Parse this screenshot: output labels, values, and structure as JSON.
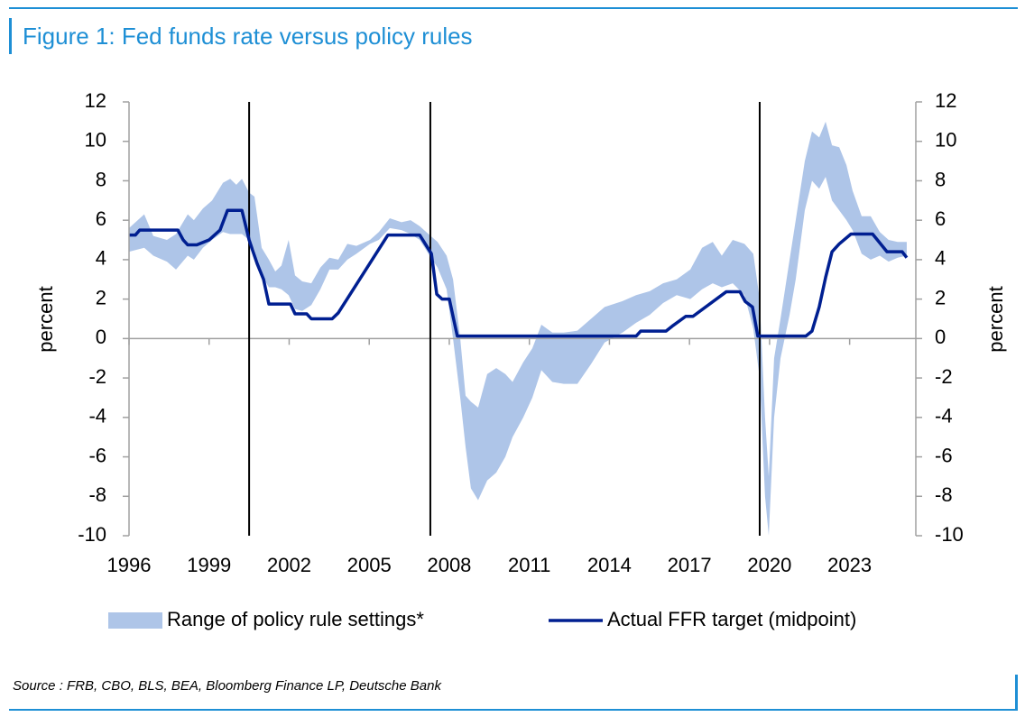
{
  "chart_data": {
    "type": "line",
    "title": "Figure 1: Fed funds rate versus policy rules",
    "source": "Source : FRB, CBO, BLS, BEA, Bloomberg Finance LP, Deutsche Bank",
    "y_label": "percent",
    "y2_label": "percent",
    "xlim": [
      1996,
      2025.48
    ],
    "xticks": [
      1996,
      1999,
      2002,
      2005,
      2008,
      2011,
      2014,
      2017,
      2020,
      2023
    ],
    "ylim": [
      -10,
      12
    ],
    "yticks": [
      -10,
      -8,
      -6,
      -4,
      -2,
      0,
      2,
      4,
      6,
      8,
      10,
      12
    ],
    "y2lim": [
      -10,
      12
    ],
    "y2ticks": [
      -10,
      -8,
      -6,
      -4,
      -2,
      0,
      2,
      4,
      6,
      8,
      10,
      12
    ],
    "grid": false,
    "legend": "bottom",
    "vlines": [
      2000.5,
      2007.29,
      2019.63
    ],
    "vline_color": "#000000",
    "series": [
      {
        "name": "Range of policy rule settings*",
        "type": "range",
        "color": "#aec5e8",
        "x": [
          1996.0,
          1996.57,
          1996.91,
          1997.42,
          1997.76,
          1998.2,
          1998.43,
          1998.77,
          1999.11,
          1999.52,
          1999.79,
          2000.02,
          2000.23,
          2000.5,
          2000.7,
          2000.97,
          2001.24,
          2001.48,
          2001.71,
          2001.98,
          2002.22,
          2002.49,
          2002.83,
          2003.17,
          2003.51,
          2003.84,
          2004.18,
          2004.52,
          2005.03,
          2005.36,
          2005.77,
          2006.21,
          2006.55,
          2006.89,
          2007.22,
          2007.56,
          2007.9,
          2008.14,
          2008.41,
          2008.61,
          2008.81,
          2009.08,
          2009.42,
          2009.76,
          2010.1,
          2010.37,
          2010.77,
          2011.11,
          2011.45,
          2011.86,
          2012.29,
          2012.8,
          2013.31,
          2013.82,
          2014.49,
          2015.0,
          2015.51,
          2016.01,
          2016.52,
          2017.03,
          2017.47,
          2017.87,
          2018.21,
          2018.62,
          2019.06,
          2019.39,
          2019.63,
          2019.83,
          2019.97,
          2020.17,
          2020.41,
          2020.75,
          2020.98,
          2021.32,
          2021.59,
          2021.86,
          2022.1,
          2022.34,
          2022.61,
          2022.88,
          2023.11,
          2023.45,
          2023.79,
          2024.13,
          2024.46,
          2024.8,
          2025.14
        ],
        "low": [
          4.4,
          4.6,
          4.2,
          3.9,
          3.5,
          4.2,
          4.0,
          4.6,
          5.0,
          5.4,
          5.3,
          5.3,
          5.3,
          5.0,
          4.5,
          3.2,
          2.6,
          2.6,
          2.5,
          2.2,
          1.5,
          1.4,
          1.7,
          2.5,
          3.5,
          3.5,
          4.0,
          4.3,
          4.8,
          5.0,
          5.6,
          5.5,
          5.3,
          5.0,
          4.3,
          3.6,
          2.5,
          0.0,
          -3.0,
          -5.5,
          -7.6,
          -8.2,
          -7.2,
          -6.8,
          -6.0,
          -5.0,
          -4.0,
          -3.0,
          -1.6,
          -2.2,
          -2.3,
          -2.3,
          -1.3,
          -0.2,
          0.3,
          0.8,
          1.2,
          1.8,
          2.2,
          2.0,
          2.5,
          2.8,
          2.6,
          2.8,
          2.2,
          0.5,
          -2.0,
          -8.0,
          -10.0,
          -4.0,
          -1.0,
          1.2,
          3.0,
          6.5,
          8.0,
          7.6,
          8.2,
          7.0,
          6.5,
          6.0,
          5.5,
          4.3,
          4.0,
          4.2,
          3.9,
          4.1,
          4.2
        ],
        "high": [
          5.6,
          6.3,
          5.2,
          5.0,
          5.3,
          6.3,
          6.0,
          6.6,
          7.0,
          7.9,
          8.1,
          7.8,
          8.1,
          7.4,
          7.2,
          4.6,
          4.0,
          3.4,
          3.7,
          5.0,
          3.2,
          2.9,
          2.8,
          3.6,
          4.1,
          4.0,
          4.8,
          4.7,
          5.0,
          5.4,
          6.1,
          5.9,
          6.0,
          5.7,
          5.3,
          4.9,
          4.2,
          3.0,
          0.0,
          -2.9,
          -3.2,
          -3.5,
          -1.8,
          -1.5,
          -1.8,
          -2.2,
          -1.2,
          -0.5,
          0.7,
          0.3,
          0.3,
          0.4,
          1.0,
          1.6,
          1.9,
          2.2,
          2.4,
          2.8,
          3.0,
          3.5,
          4.6,
          4.9,
          4.2,
          5.0,
          4.8,
          4.3,
          2.0,
          -4.0,
          -7.0,
          -1.0,
          1.0,
          4.0,
          6.0,
          9.0,
          10.5,
          10.2,
          11.0,
          9.8,
          9.7,
          8.8,
          7.5,
          6.2,
          6.2,
          5.4,
          5.0,
          4.9,
          4.9
        ]
      },
      {
        "name": "Actual FFR target (midpoint)",
        "type": "line",
        "color": "#001f91",
        "x": [
          1996.0,
          1996.24,
          1996.4,
          1997.83,
          1998.03,
          1998.2,
          1998.54,
          1999.0,
          1999.41,
          1999.69,
          2000.23,
          2000.5,
          2000.8,
          2001.04,
          2001.24,
          2002.05,
          2002.22,
          2002.66,
          2002.83,
          2003.61,
          2003.84,
          2005.7,
          2006.89,
          2007.33,
          2007.53,
          2007.73,
          2008.0,
          2008.3,
          2015.0,
          2015.17,
          2016.12,
          2016.35,
          2016.86,
          2017.13,
          2018.38,
          2018.89,
          2019.09,
          2019.36,
          2019.56,
          2021.36,
          2021.59,
          2021.86,
          2022.1,
          2022.34,
          2022.61,
          2023.05,
          2023.86,
          2024.4,
          2024.97,
          2025.14
        ],
        "values": [
          5.25,
          5.25,
          5.5,
          5.5,
          5.0,
          4.75,
          4.75,
          5.0,
          5.5,
          6.5,
          6.5,
          5.0,
          3.8,
          3.0,
          1.75,
          1.75,
          1.25,
          1.25,
          1.0,
          1.0,
          1.3,
          5.25,
          5.25,
          4.3,
          2.25,
          2.0,
          2.0,
          0.125,
          0.125,
          0.375,
          0.375,
          0.625,
          1.125,
          1.125,
          2.375,
          2.375,
          1.875,
          1.6,
          0.125,
          0.125,
          0.375,
          1.6,
          3.1,
          4.4,
          4.8,
          5.3,
          5.3,
          4.4,
          4.4,
          4.1
        ]
      }
    ]
  }
}
